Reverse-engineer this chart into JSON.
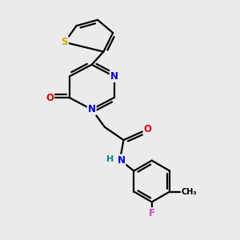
{
  "bg_color": "#ebebeb",
  "atom_colors": {
    "C": "#000000",
    "N": "#0000cc",
    "O": "#dd0000",
    "S": "#ccaa00",
    "F": "#cc44cc",
    "H": "#008888"
  },
  "bond_color": "#000000",
  "bond_width": 1.6,
  "figsize": [
    3.0,
    3.0
  ],
  "dpi": 100
}
